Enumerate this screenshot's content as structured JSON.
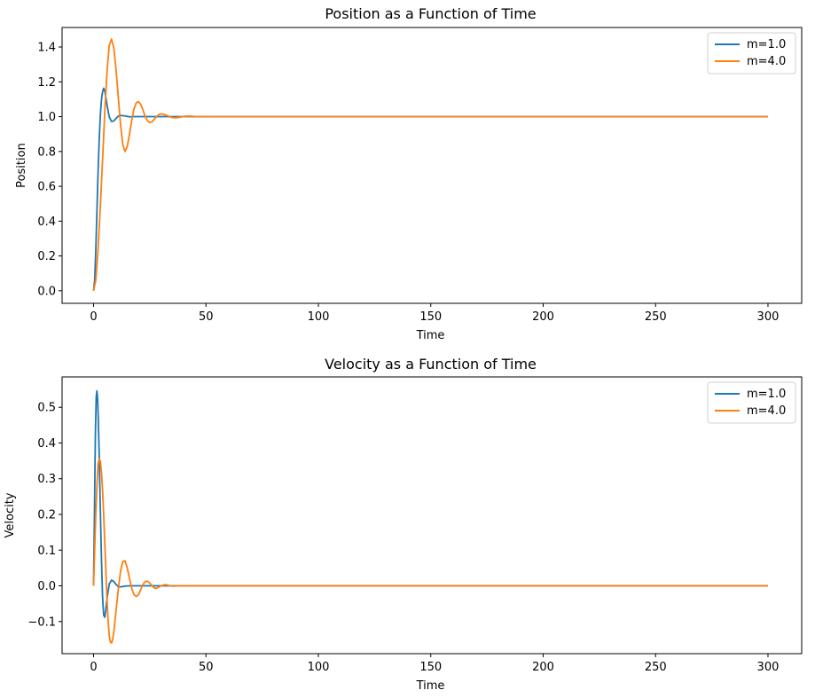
{
  "chart_data": [
    {
      "type": "line",
      "title": "Position as a Function of Time",
      "xlabel": "Time",
      "ylabel": "Position",
      "xlim": [
        -14,
        315
      ],
      "ylim": [
        -0.072,
        1.512
      ],
      "xticks": [
        0,
        50,
        100,
        150,
        200,
        250,
        300
      ],
      "yticks": [
        0.0,
        0.2,
        0.4,
        0.6,
        0.8,
        1.0,
        1.2,
        1.4
      ],
      "ytick_labels": [
        "0.0",
        "0.2",
        "0.4",
        "0.6",
        "0.8",
        "1.0",
        "1.2",
        "1.4"
      ],
      "grid": false,
      "legend": "upper right",
      "series": [
        {
          "name": "m=1.0",
          "color": "#1f77b4",
          "x": [
            0,
            0.5,
            1,
            1.5,
            2,
            2.5,
            3,
            3.5,
            4,
            4.5,
            5,
            5.5,
            6,
            7,
            8,
            9,
            10,
            11,
            12,
            14,
            16,
            18,
            20,
            25,
            30,
            40,
            60,
            100,
            200,
            300
          ],
          "y": [
            0,
            0.061,
            0.234,
            0.457,
            0.676,
            0.864,
            1.004,
            1.095,
            1.142,
            1.163,
            1.146,
            1.108,
            1.066,
            0.998,
            0.972,
            0.975,
            0.99,
            1.003,
            1.007,
            1.004,
            0.999,
            1.0,
            1.0,
            1.0,
            1.0,
            1.0,
            1.0,
            1.0,
            1.0,
            1.0
          ]
        },
        {
          "name": "m=4.0",
          "color": "#ff7f0e",
          "x": [
            0,
            1,
            2,
            3,
            4,
            5,
            6,
            7,
            8,
            9,
            10,
            11,
            12,
            13,
            14,
            15,
            16,
            17,
            18,
            19,
            20,
            21,
            22,
            23,
            24,
            25,
            26,
            27,
            28,
            29,
            30,
            31,
            32,
            33,
            34,
            35,
            36,
            37,
            38,
            40,
            42,
            45,
            48,
            50,
            55,
            60,
            80,
            100,
            150,
            200,
            250,
            300
          ],
          "y": [
            0,
            0.061,
            0.235,
            0.478,
            0.749,
            1.03,
            1.262,
            1.412,
            1.445,
            1.396,
            1.272,
            1.113,
            0.955,
            0.84,
            0.8,
            0.828,
            0.9,
            0.98,
            1.045,
            1.08,
            1.086,
            1.07,
            1.038,
            1.0,
            0.976,
            0.966,
            0.97,
            0.985,
            1.0,
            1.012,
            1.016,
            1.014,
            1.01,
            1.005,
            0.999,
            0.995,
            0.993,
            0.994,
            0.996,
            1.001,
            1.003,
            1.001,
            1.0,
            1.0,
            1.0,
            1.0,
            1.0,
            1.0,
            1.0,
            1.0,
            1.0,
            1.0
          ]
        }
      ]
    },
    {
      "type": "line",
      "title": "Velocity as a Function of Time",
      "xlabel": "Time",
      "ylabel": "Velocity",
      "xlim": [
        -14,
        315
      ],
      "ylim": [
        -0.19,
        0.585
      ],
      "xticks": [
        0,
        50,
        100,
        150,
        200,
        250,
        300
      ],
      "yticks": [
        -0.1,
        0.0,
        0.1,
        0.2,
        0.3,
        0.4,
        0.5
      ],
      "ytick_labels": [
        "−0.1",
        "0.0",
        "0.1",
        "0.2",
        "0.3",
        "0.4",
        "0.5"
      ],
      "grid": false,
      "legend": "upper right",
      "series": [
        {
          "name": "m=1.0",
          "color": "#1f77b4",
          "x": [
            0,
            0.4,
            0.8,
            1.2,
            1.5,
            1.8,
            2.1,
            2.5,
            3,
            3.5,
            4,
            4.5,
            5,
            5.5,
            6,
            7,
            8,
            9,
            10,
            11,
            12,
            14,
            16,
            18,
            20,
            25,
            30,
            50,
            100,
            200,
            300
          ],
          "y": [
            0,
            0.2,
            0.42,
            0.53,
            0.546,
            0.525,
            0.47,
            0.37,
            0.22,
            0.08,
            -0.03,
            -0.082,
            -0.088,
            -0.065,
            -0.035,
            0.005,
            0.016,
            0.012,
            0.004,
            -0.002,
            -0.003,
            -0.001,
            0.0,
            0.0,
            0.0,
            0.0,
            0.0,
            0.0,
            0.0,
            0.0,
            0.0
          ]
        },
        {
          "name": "m=4.0",
          "color": "#ff7f0e",
          "x": [
            0,
            0.5,
            1,
            1.5,
            2,
            2.5,
            3,
            3.5,
            4,
            4.5,
            5,
            5.5,
            6,
            6.5,
            7,
            7.5,
            8,
            8.5,
            9,
            9.5,
            10,
            11,
            12,
            13,
            14,
            15,
            16,
            17,
            18,
            19,
            20,
            21,
            22,
            23,
            24,
            25,
            26,
            27,
            28,
            29,
            30,
            31,
            32,
            33,
            34,
            35,
            36,
            38,
            40,
            42,
            44,
            46,
            50,
            60,
            100,
            150,
            200,
            250,
            300
          ],
          "y": [
            0,
            0.1,
            0.2,
            0.28,
            0.34,
            0.355,
            0.35,
            0.32,
            0.27,
            0.2,
            0.12,
            0.04,
            -0.04,
            -0.1,
            -0.14,
            -0.158,
            -0.16,
            -0.15,
            -0.13,
            -0.1,
            -0.07,
            -0.01,
            0.04,
            0.068,
            0.07,
            0.05,
            0.02,
            -0.008,
            -0.025,
            -0.03,
            -0.025,
            -0.01,
            0.004,
            0.012,
            0.013,
            0.008,
            0.0,
            -0.006,
            -0.007,
            -0.004,
            0.0,
            0.002,
            0.003,
            0.002,
            0.0,
            -0.001,
            -0.001,
            0.0,
            0.0,
            0.0,
            0.0,
            0.0,
            0.0,
            0.0,
            0.0,
            0.0,
            0.0,
            0.0,
            0.0
          ]
        }
      ]
    }
  ]
}
